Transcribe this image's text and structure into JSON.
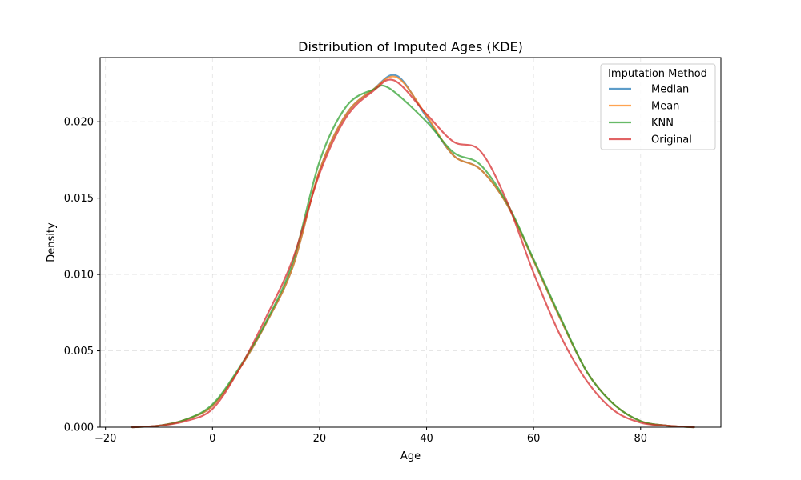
{
  "chart_data": {
    "type": "line",
    "title": "Distribution of Imputed Ages (KDE)",
    "xlabel": "Age",
    "ylabel": "Density",
    "xlim": [
      -21,
      95
    ],
    "ylim": [
      0,
      0.0242
    ],
    "xticks": [
      -20,
      0,
      20,
      40,
      60,
      80
    ],
    "xtick_labels": [
      "−20",
      "0",
      "20",
      "40",
      "60",
      "80"
    ],
    "yticks": [
      0,
      0.005,
      0.01,
      0.015,
      0.02
    ],
    "ytick_labels": [
      "0.000",
      "0.005",
      "0.010",
      "0.015",
      "0.020"
    ],
    "grid": true,
    "legend": {
      "title": "Imputation Method",
      "placement": "top-right"
    },
    "series": [
      {
        "name": "Median",
        "color": "#1f77b4",
        "x": [
          -15,
          -10,
          -5,
          0,
          5,
          10,
          15,
          20,
          25,
          30,
          34.5,
          40,
          45,
          50,
          55,
          60,
          65,
          70,
          75,
          80,
          85,
          90
        ],
        "y": [
          0,
          0.0001,
          0.0005,
          0.0014,
          0.0038,
          0.0068,
          0.0105,
          0.0168,
          0.0205,
          0.0221,
          0.023,
          0.0203,
          0.0178,
          0.0169,
          0.0146,
          0.0109,
          0.0071,
          0.0036,
          0.0015,
          0.0004,
          0.0001,
          0
        ]
      },
      {
        "name": "Mean",
        "color": "#ff7f0e",
        "x": [
          -15,
          -10,
          -5,
          0,
          5,
          10,
          15,
          20,
          25,
          30,
          34.5,
          40,
          45,
          50,
          55,
          60,
          65,
          70,
          75,
          80,
          85,
          90
        ],
        "y": [
          0,
          0.0001,
          0.0005,
          0.0014,
          0.0038,
          0.0068,
          0.0105,
          0.0168,
          0.0205,
          0.0221,
          0.0229,
          0.0204,
          0.0178,
          0.0169,
          0.0146,
          0.0109,
          0.0071,
          0.0036,
          0.0015,
          0.0004,
          0.0001,
          0
        ]
      },
      {
        "name": "KNN",
        "color": "#2ca02c",
        "x": [
          -15,
          -10,
          -5,
          0,
          5,
          10,
          15,
          20,
          25,
          30,
          33,
          40,
          45,
          50,
          55,
          60,
          65,
          70,
          75,
          80,
          85,
          90
        ],
        "y": [
          0,
          0.0001,
          0.0005,
          0.0015,
          0.0039,
          0.0069,
          0.0108,
          0.0174,
          0.021,
          0.0221,
          0.0222,
          0.02,
          0.018,
          0.0172,
          0.0147,
          0.011,
          0.0072,
          0.0036,
          0.0015,
          0.0004,
          0.0001,
          0
        ]
      },
      {
        "name": "Original",
        "color": "#d62728",
        "x": [
          -15,
          -10,
          -5,
          0,
          5,
          10,
          15,
          20,
          25,
          30,
          34,
          40,
          45,
          50,
          55,
          60,
          65,
          70,
          75,
          80,
          85,
          90
        ],
        "y": [
          0,
          0.0001,
          0.0004,
          0.0012,
          0.0038,
          0.0072,
          0.011,
          0.0166,
          0.0203,
          0.022,
          0.0227,
          0.0205,
          0.0187,
          0.0181,
          0.0148,
          0.0101,
          0.006,
          0.003,
          0.0011,
          0.0003,
          0.0001,
          0
        ]
      }
    ]
  }
}
